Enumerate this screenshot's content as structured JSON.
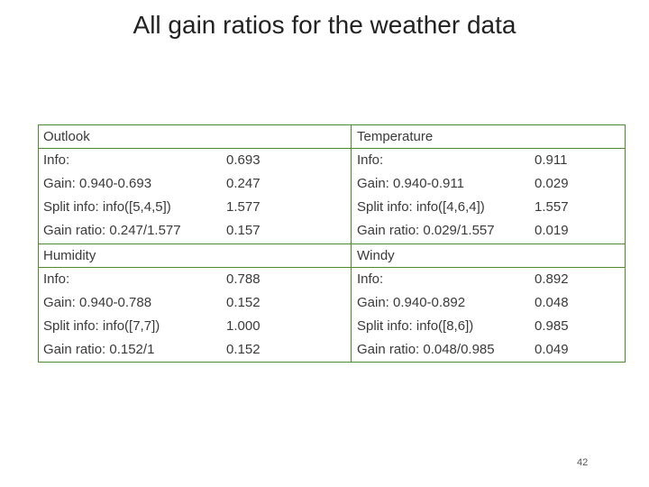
{
  "title": "All gain ratios for the weather data",
  "sections": [
    {
      "name": "Outlook",
      "rows": [
        [
          "Info:",
          "0.693"
        ],
        [
          "Gain: 0.940-0.693",
          "0.247"
        ],
        [
          "Split info: info([5,4,5])",
          "1.577"
        ],
        [
          "Gain ratio: 0.247/1.577",
          "0.157"
        ]
      ]
    },
    {
      "name": "Temperature",
      "rows": [
        [
          "Info:",
          "0.911"
        ],
        [
          "Gain: 0.940-0.911",
          "0.029"
        ],
        [
          "Split info: info([4,6,4])",
          "1.557"
        ],
        [
          "Gain ratio: 0.029/1.557",
          "0.019"
        ]
      ]
    },
    {
      "name": "Humidity",
      "rows": [
        [
          "Info:",
          "0.788"
        ],
        [
          "Gain: 0.940-0.788",
          "0.152"
        ],
        [
          "Split info: info([7,7])",
          "1.000"
        ],
        [
          "Gain ratio: 0.152/1",
          "0.152"
        ]
      ]
    },
    {
      "name": "Windy",
      "rows": [
        [
          "Info:",
          "0.892"
        ],
        [
          "Gain: 0.940-0.892",
          "0.048"
        ],
        [
          "Split info: info([8,6])",
          "0.985"
        ],
        [
          "Gain ratio: 0.048/0.985",
          "0.049"
        ]
      ]
    }
  ],
  "page_number": "42"
}
